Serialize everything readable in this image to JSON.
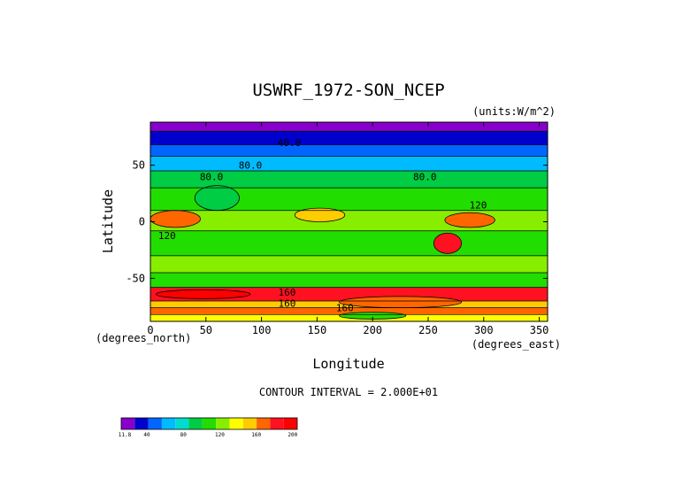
{
  "chart_data": {
    "type": "heatmap",
    "title": "USWRF_1972-SON_NCEP",
    "units_label": "(units:W/m^2)",
    "xlabel": "Longitude",
    "ylabel": "Latitude",
    "x_unit_label": "(degrees_east)",
    "y_unit_label": "(degrees_north)",
    "xlim": [
      0,
      357.5
    ],
    "ylim": [
      -88,
      88
    ],
    "x_ticks": [
      0,
      50,
      100,
      150,
      200,
      250,
      300,
      350
    ],
    "x_tick_labels": [
      "0",
      "50",
      "100",
      "150",
      "200",
      "250",
      "300",
      "350"
    ],
    "y_ticks": [
      -50,
      0,
      50
    ],
    "y_tick_labels": [
      "-50",
      "0",
      "50"
    ],
    "contour_interval_text": "CONTOUR INTERVAL = 2.000E+01",
    "contour_labels": [
      {
        "text": "40.0",
        "lon": 125,
        "lat": 70
      },
      {
        "text": "80.0",
        "lon": 90,
        "lat": 50
      },
      {
        "text": "80.0",
        "lon": 55,
        "lat": 40
      },
      {
        "text": "80.0",
        "lon": 247,
        "lat": 40
      },
      {
        "text": "120",
        "lon": 295,
        "lat": 15
      },
      {
        "text": "120",
        "lon": 15,
        "lat": -12
      },
      {
        "text": "160",
        "lon": 123,
        "lat": -62
      },
      {
        "text": "160",
        "lon": 123,
        "lat": -72
      },
      {
        "text": "160",
        "lon": 175,
        "lat": -76
      }
    ],
    "latitude_bands": [
      {
        "lat_top": 88,
        "lat_bottom": 80,
        "value": 15
      },
      {
        "lat_top": 80,
        "lat_bottom": 68,
        "value": 35
      },
      {
        "lat_top": 68,
        "lat_bottom": 58,
        "value": 50
      },
      {
        "lat_top": 58,
        "lat_bottom": 45,
        "value": 70
      },
      {
        "lat_top": 45,
        "lat_bottom": 30,
        "value": 90
      },
      {
        "lat_top": 30,
        "lat_bottom": 10,
        "value": 110
      },
      {
        "lat_top": 10,
        "lat_bottom": -8,
        "value": 130
      },
      {
        "lat_top": -8,
        "lat_bottom": -30,
        "value": 110
      },
      {
        "lat_top": -30,
        "lat_bottom": -45,
        "value": 125
      },
      {
        "lat_top": -45,
        "lat_bottom": -58,
        "value": 115
      },
      {
        "lat_top": -58,
        "lat_bottom": -70,
        "value": 190
      },
      {
        "lat_top": -70,
        "lat_bottom": -76,
        "value": 150
      },
      {
        "lat_top": -76,
        "lat_bottom": -82,
        "value": 175
      },
      {
        "lat_top": -82,
        "lat_bottom": -88,
        "value": 145
      }
    ],
    "regional_features": [
      {
        "lon_min": 0,
        "lon_max": 45,
        "lat_min": -5,
        "lat_max": 10,
        "value": 170
      },
      {
        "lon_min": 265,
        "lon_max": 310,
        "lat_min": -5,
        "lat_max": 8,
        "value": 170
      },
      {
        "lon_min": 130,
        "lon_max": 175,
        "lat_min": 0,
        "lat_max": 12,
        "value": 150
      },
      {
        "lon_min": 255,
        "lon_max": 280,
        "lat_min": -28,
        "lat_max": -10,
        "value": 190
      },
      {
        "lon_min": 40,
        "lon_max": 80,
        "lat_min": 10,
        "lat_max": 32,
        "value": 95
      },
      {
        "lon_min": 5,
        "lon_max": 90,
        "lat_min": -68,
        "lat_max": -60,
        "value": 200
      },
      {
        "lon_min": 170,
        "lon_max": 280,
        "lat_min": -76,
        "lat_max": -66,
        "value": 175
      },
      {
        "lon_min": 170,
        "lon_max": 230,
        "lat_min": -86,
        "lat_max": -80,
        "value": 110
      }
    ],
    "legend": {
      "placement": "bottom-left",
      "colors": [
        "#8800cc",
        "#0000cc",
        "#0066ff",
        "#00bbff",
        "#00ddcc",
        "#00cc44",
        "#22dd00",
        "#88ee00",
        "#ffff00",
        "#ffcc00",
        "#ff6600",
        "#ff1122",
        "#ff0000"
      ],
      "tick_labels": [
        "11.8",
        "40",
        "80",
        "120",
        "160",
        "200"
      ],
      "tick_values": [
        11.8,
        40,
        80,
        120,
        160,
        200
      ],
      "vmin": 11.8,
      "vmax": 205
    }
  }
}
